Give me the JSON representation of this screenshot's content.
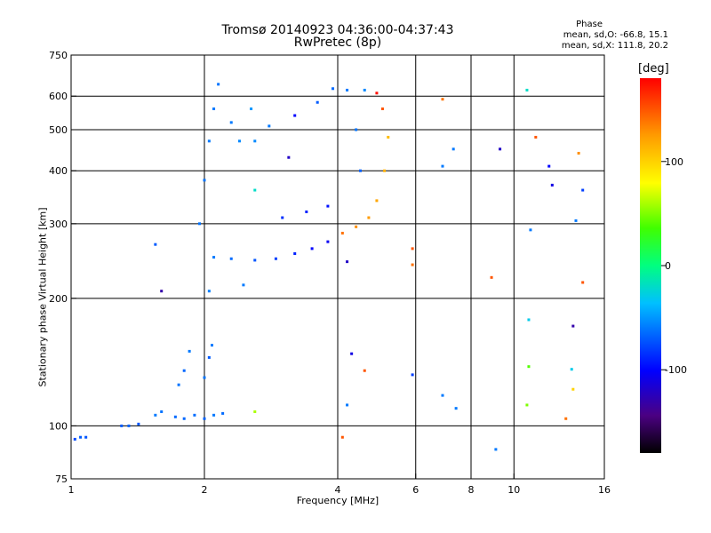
{
  "title": "Tromsø 20140923 04:36:00-04:37:43",
  "subtitle": "RwPretec (8p)",
  "stats": {
    "heading": "Phase",
    "line1": "mean, sd,O: -66.8, 15.1",
    "line2": "mean, sd,X: 111.8, 20.2"
  },
  "colorbar": {
    "label": "[deg]",
    "ticks": [
      "100",
      "0",
      "-100"
    ],
    "tick_values": [
      100,
      0,
      -100
    ],
    "range": [
      -180,
      180
    ]
  },
  "chart_data": {
    "type": "scatter",
    "title": "Tromsø 20140923 04:36:00-04:37:43",
    "subtitle": "RwPretec (8p)",
    "xlabel": "Frequency [MHz]",
    "ylabel": "Stationary phase Virtual Height [km]",
    "xscale": "log",
    "yscale": "log",
    "xlim": [
      1,
      16
    ],
    "ylim": [
      75,
      750
    ],
    "xticks": [
      1,
      2,
      4,
      6,
      8,
      10,
      16
    ],
    "xtick_labels": [
      "1",
      "2",
      "4",
      "6",
      "8",
      "10",
      "16"
    ],
    "xgrid": [
      2,
      4,
      6,
      8,
      10
    ],
    "yticks": [
      75,
      100,
      200,
      300,
      400,
      500,
      600,
      750
    ],
    "ytick_labels": [
      "75",
      "100",
      "200",
      "300",
      "400",
      "500",
      "600",
      "750"
    ],
    "ygrid": [
      100,
      200,
      300,
      400,
      500,
      600
    ],
    "grid": true,
    "colorbar_label": "[deg]",
    "points": [
      {
        "x": 1.02,
        "y": 93,
        "phase": -75
      },
      {
        "x": 1.05,
        "y": 94,
        "phase": -70
      },
      {
        "x": 1.08,
        "y": 94,
        "phase": -72
      },
      {
        "x": 1.3,
        "y": 100,
        "phase": -70
      },
      {
        "x": 1.35,
        "y": 100,
        "phase": -68
      },
      {
        "x": 1.42,
        "y": 101,
        "phase": -72
      },
      {
        "x": 1.55,
        "y": 106,
        "phase": -60
      },
      {
        "x": 1.6,
        "y": 108,
        "phase": -62
      },
      {
        "x": 1.72,
        "y": 105,
        "phase": -65
      },
      {
        "x": 1.8,
        "y": 104,
        "phase": -66
      },
      {
        "x": 1.9,
        "y": 106,
        "phase": -64
      },
      {
        "x": 2.0,
        "y": 104,
        "phase": -68
      },
      {
        "x": 2.1,
        "y": 106,
        "phase": -60
      },
      {
        "x": 2.2,
        "y": 107,
        "phase": -65
      },
      {
        "x": 1.75,
        "y": 125,
        "phase": -62
      },
      {
        "x": 1.8,
        "y": 135,
        "phase": -66
      },
      {
        "x": 1.85,
        "y": 150,
        "phase": -60
      },
      {
        "x": 2.0,
        "y": 130,
        "phase": -62
      },
      {
        "x": 2.05,
        "y": 145,
        "phase": -70
      },
      {
        "x": 2.08,
        "y": 155,
        "phase": -60
      },
      {
        "x": 2.05,
        "y": 208,
        "phase": -58
      },
      {
        "x": 2.45,
        "y": 215,
        "phase": -60
      },
      {
        "x": 2.1,
        "y": 250,
        "phase": -60
      },
      {
        "x": 2.3,
        "y": 248,
        "phase": -65
      },
      {
        "x": 2.6,
        "y": 246,
        "phase": -72
      },
      {
        "x": 2.9,
        "y": 248,
        "phase": -80
      },
      {
        "x": 3.2,
        "y": 255,
        "phase": -90
      },
      {
        "x": 3.5,
        "y": 262,
        "phase": -100
      },
      {
        "x": 3.8,
        "y": 272,
        "phase": -105
      },
      {
        "x": 4.1,
        "y": 285,
        "phase": 140
      },
      {
        "x": 4.4,
        "y": 295,
        "phase": 130
      },
      {
        "x": 4.7,
        "y": 310,
        "phase": 125
      },
      {
        "x": 4.9,
        "y": 340,
        "phase": 120
      },
      {
        "x": 5.1,
        "y": 400,
        "phase": 115
      },
      {
        "x": 5.2,
        "y": 480,
        "phase": 110
      },
      {
        "x": 5.05,
        "y": 560,
        "phase": 150
      },
      {
        "x": 4.9,
        "y": 610,
        "phase": 175
      },
      {
        "x": 1.95,
        "y": 300,
        "phase": -62
      },
      {
        "x": 2.0,
        "y": 380,
        "phase": -62
      },
      {
        "x": 2.05,
        "y": 470,
        "phase": -60
      },
      {
        "x": 2.1,
        "y": 560,
        "phase": -60
      },
      {
        "x": 2.15,
        "y": 640,
        "phase": -62
      },
      {
        "x": 2.3,
        "y": 520,
        "phase": -60
      },
      {
        "x": 2.4,
        "y": 470,
        "phase": -55
      },
      {
        "x": 2.55,
        "y": 560,
        "phase": -50
      },
      {
        "x": 2.6,
        "y": 470,
        "phase": -55
      },
      {
        "x": 2.8,
        "y": 510,
        "phase": -60
      },
      {
        "x": 3.1,
        "y": 430,
        "phase": -120
      },
      {
        "x": 3.2,
        "y": 540,
        "phase": -100
      },
      {
        "x": 3.6,
        "y": 580,
        "phase": -70
      },
      {
        "x": 3.9,
        "y": 625,
        "phase": -65
      },
      {
        "x": 4.2,
        "y": 620,
        "phase": -60
      },
      {
        "x": 4.4,
        "y": 500,
        "phase": -62
      },
      {
        "x": 4.5,
        "y": 400,
        "phase": -68
      },
      {
        "x": 4.6,
        "y": 620,
        "phase": -55
      },
      {
        "x": 3.0,
        "y": 310,
        "phase": -85
      },
      {
        "x": 3.4,
        "y": 320,
        "phase": -90
      },
      {
        "x": 3.8,
        "y": 330,
        "phase": -95
      },
      {
        "x": 2.6,
        "y": 360,
        "phase": -20
      },
      {
        "x": 6.9,
        "y": 590,
        "phase": 140
      },
      {
        "x": 7.3,
        "y": 450,
        "phase": -60
      },
      {
        "x": 6.9,
        "y": 410,
        "phase": -60
      },
      {
        "x": 9.3,
        "y": 450,
        "phase": -120
      },
      {
        "x": 10.7,
        "y": 620,
        "phase": -20
      },
      {
        "x": 11.2,
        "y": 480,
        "phase": 150
      },
      {
        "x": 12.0,
        "y": 410,
        "phase": -100
      },
      {
        "x": 14.0,
        "y": 440,
        "phase": 130
      },
      {
        "x": 14.3,
        "y": 360,
        "phase": -80
      },
      {
        "x": 12.2,
        "y": 370,
        "phase": -110
      },
      {
        "x": 10.9,
        "y": 290,
        "phase": -60
      },
      {
        "x": 13.8,
        "y": 305,
        "phase": -60
      },
      {
        "x": 5.9,
        "y": 262,
        "phase": 150
      },
      {
        "x": 5.9,
        "y": 240,
        "phase": 140
      },
      {
        "x": 4.2,
        "y": 244,
        "phase": -120
      },
      {
        "x": 8.9,
        "y": 224,
        "phase": 150
      },
      {
        "x": 14.3,
        "y": 218,
        "phase": 150
      },
      {
        "x": 1.55,
        "y": 268,
        "phase": -70
      },
      {
        "x": 1.6,
        "y": 208,
        "phase": -130
      },
      {
        "x": 10.8,
        "y": 178,
        "phase": -30
      },
      {
        "x": 13.6,
        "y": 172,
        "phase": -130
      },
      {
        "x": 10.8,
        "y": 138,
        "phase": 40
      },
      {
        "x": 13.5,
        "y": 136,
        "phase": -30
      },
      {
        "x": 4.6,
        "y": 135,
        "phase": 150
      },
      {
        "x": 5.9,
        "y": 132,
        "phase": -80
      },
      {
        "x": 4.3,
        "y": 148,
        "phase": -110
      },
      {
        "x": 6.9,
        "y": 118,
        "phase": -60
      },
      {
        "x": 7.4,
        "y": 110,
        "phase": -60
      },
      {
        "x": 10.7,
        "y": 112,
        "phase": 50
      },
      {
        "x": 13.1,
        "y": 104,
        "phase": 140
      },
      {
        "x": 2.6,
        "y": 108,
        "phase": 60
      },
      {
        "x": 4.2,
        "y": 112,
        "phase": -60
      },
      {
        "x": 4.1,
        "y": 94,
        "phase": 150
      },
      {
        "x": 9.1,
        "y": 88,
        "phase": -60
      },
      {
        "x": 13.6,
        "y": 122,
        "phase": 100
      }
    ]
  }
}
